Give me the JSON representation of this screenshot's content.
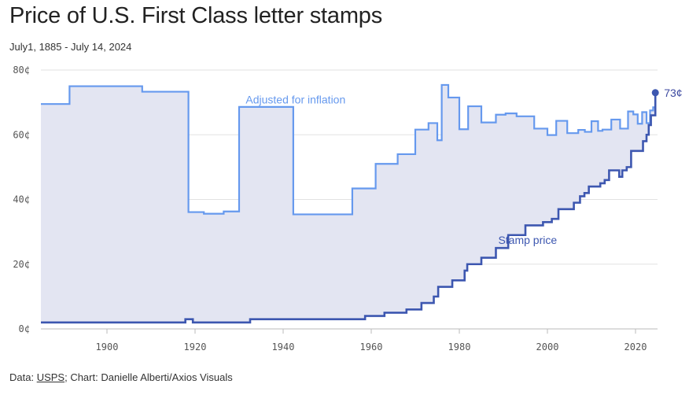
{
  "header": {
    "title": "Price of U.S. First Class letter stamps",
    "subtitle": "July1, 1885 - July 14, 2024"
  },
  "footer": {
    "source_prefix": "Data: ",
    "source_link": "USPS",
    "credit": "; Chart: Danielle Alberti/Axios Visuals"
  },
  "colors": {
    "adjusted": "#6699ee",
    "stamp": "#3d57b0",
    "fill": "#e3e5f2",
    "grid": "#e2e2e2",
    "end_label": "#3d4aa0"
  },
  "chart_data": {
    "type": "line",
    "x_range": [
      1885,
      2025
    ],
    "y_range": [
      0,
      80
    ],
    "y_ticks": [
      0,
      20,
      40,
      60,
      80
    ],
    "y_tick_labels": [
      "0¢",
      "20¢",
      "40¢",
      "60¢",
      "80¢"
    ],
    "x_ticks": [
      1900,
      1920,
      1940,
      1960,
      1980,
      2000,
      2020
    ],
    "x_tick_labels": [
      "1900",
      "1920",
      "1940",
      "1960",
      "1980",
      "2000",
      "2020"
    ],
    "grid": "horizontal",
    "step": true,
    "annotations": [
      {
        "text": "Adjusted for inflation",
        "series": "Adjusted for inflation"
      },
      {
        "text": "Stamp price",
        "series": "Stamp price"
      },
      {
        "text": "73¢",
        "x": 2024.5,
        "y": 73
      }
    ],
    "series": [
      {
        "name": "Stamp price",
        "x": [
          1885,
          1917.8,
          1919.5,
          1932.5,
          1958.6,
          1963,
          1968,
          1971.4,
          1974.2,
          1975.2,
          1978.4,
          1981.2,
          1981.8,
          1985,
          1988.3,
          1991.1,
          1995,
          1999,
          2001,
          2002.5,
          2006,
          2007.4,
          2008.4,
          2009.4,
          2012,
          2013,
          2014,
          2016.3,
          2017,
          2018,
          2019,
          2021.7,
          2022.5,
          2023,
          2023.5,
          2024.5
        ],
        "y": [
          2,
          3,
          2,
          3,
          4,
          5,
          6,
          8,
          10,
          13,
          15,
          18,
          20,
          22,
          25,
          29,
          32,
          33,
          34,
          37,
          39,
          41,
          42,
          44,
          45,
          46,
          49,
          47,
          49,
          50,
          55,
          58,
          60,
          63,
          66,
          73
        ]
      },
      {
        "name": "Adjusted for inflation",
        "x": [
          1885,
          1891.5,
          1908,
          1918.5,
          1922,
          1926.5,
          1930,
          1942.3,
          1955.7,
          1961,
          1966,
          1970,
          1973,
          1975,
          1976,
          1977.5,
          1980,
          1982,
          1985,
          1988.3,
          1990.5,
          1993,
          1997,
          2000,
          2002,
          2004.5,
          2007,
          2008.5,
          2010,
          2011.5,
          2012.5,
          2014.5,
          2016.5,
          2018.3,
          2019.5,
          2020.5,
          2021.5,
          2022.5,
          2023.3,
          2024,
          2024.5
        ],
        "y": [
          69.5,
          75,
          73.3,
          36.1,
          35.6,
          36.3,
          68.6,
          35.4,
          43.4,
          51,
          54,
          61.6,
          63.6,
          58.3,
          75.4,
          71.5,
          61.7,
          68.8,
          63.8,
          66.2,
          66.6,
          65.7,
          61.9,
          59.9,
          64.3,
          60.5,
          61.5,
          60.9,
          64.2,
          61.2,
          61.6,
          64.7,
          61.9,
          67.2,
          66.3,
          63.4,
          67,
          63.6,
          67.5,
          68.5,
          73
        ]
      }
    ]
  }
}
